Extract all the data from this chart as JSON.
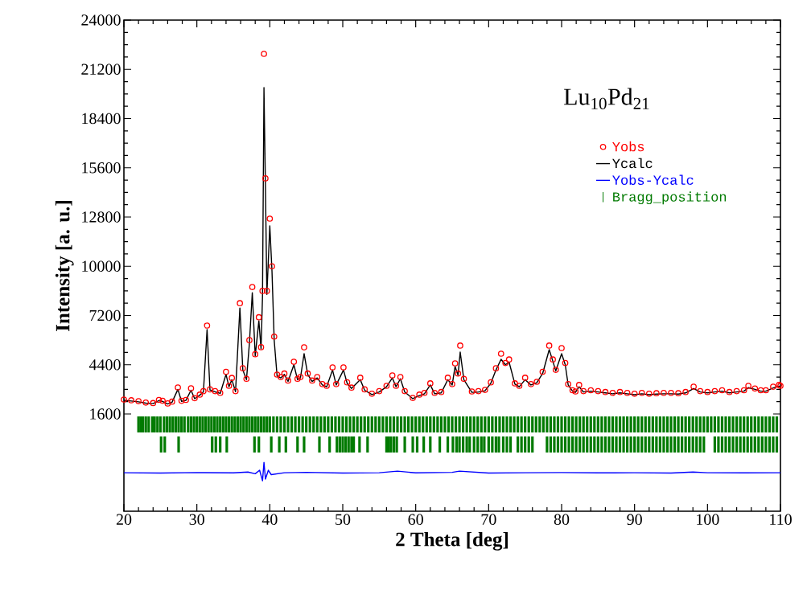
{
  "chart_data": {
    "type": "line",
    "xlabel": "2 Theta [deg]",
    "ylabel": "Intensity [a. u.]",
    "annotations": [
      "Lu$_{10}$Pd$_{21}$"
    ],
    "xlim": [
      20,
      110
    ],
    "ylim": [
      -3930,
      24000
    ],
    "xticks": [
      20,
      30,
      40,
      50,
      60,
      70,
      80,
      90,
      100,
      110
    ],
    "yticks": [
      1600,
      4400,
      7200,
      10000,
      12800,
      15600,
      18400,
      21200,
      24000
    ],
    "legend": "top right",
    "series": [
      {
        "name": "Yobs",
        "type": "scatter",
        "marker": "circle",
        "color": "#ff0000",
        "x": [
          20,
          21,
          22,
          23,
          24,
          24.8,
          25.3,
          26,
          26.6,
          27.4,
          27.9,
          28.5,
          29.2,
          29.7,
          30.4,
          30.9,
          31.4,
          31.8,
          32.5,
          33.2,
          34.0,
          34.4,
          34.8,
          35.3,
          35.9,
          36.3,
          36.8,
          37.2,
          37.6,
          38.0,
          38.5,
          38.8,
          39.0,
          39.2,
          39.4,
          39.6,
          40.0,
          40.3,
          40.6,
          41.0,
          41.5,
          42.0,
          42.5,
          43.3,
          43.8,
          44.2,
          44.7,
          45.2,
          45.8,
          46.5,
          47.2,
          47.8,
          48.6,
          49.1,
          50.1,
          50.6,
          51.2,
          52.4,
          53.0,
          54.0,
          55.0,
          56.0,
          56.8,
          57.3,
          57.9,
          58.5,
          59.6,
          60.5,
          61.2,
          62.0,
          62.6,
          63.5,
          64.4,
          65.0,
          65.4,
          65.8,
          66.1,
          66.6,
          67.7,
          68.6,
          69.5,
          70.3,
          71.0,
          71.7,
          72.3,
          72.8,
          73.6,
          74.2,
          75.0,
          75.8,
          76.6,
          77.4,
          78.3,
          78.8,
          79.2,
          80.0,
          80.5,
          80.9,
          81.5,
          81.9,
          82.4,
          83.0,
          84.0,
          85.0,
          86.0,
          87.0,
          88.0,
          89.0,
          90.0,
          91.0,
          92.0,
          93.0,
          94.0,
          95.0,
          96.0,
          97.0,
          98.1,
          99.0,
          100.0,
          101.0,
          102.0,
          103.0,
          104.0,
          105.0,
          105.6,
          106.5,
          107.3,
          108.0,
          109.0,
          109.8,
          110
        ],
        "values": [
          2420,
          2380,
          2330,
          2250,
          2220,
          2400,
          2350,
          2200,
          2300,
          3110,
          2350,
          2400,
          3060,
          2500,
          2700,
          2900,
          6630,
          3000,
          2900,
          2800,
          4000,
          3200,
          3650,
          2900,
          7900,
          4200,
          3600,
          5800,
          8820,
          5000,
          7100,
          5400,
          8600,
          22080,
          15000,
          8600,
          12710,
          10000,
          6000,
          3840,
          3700,
          3900,
          3500,
          4570,
          3600,
          3700,
          5390,
          3900,
          3500,
          3700,
          3300,
          3200,
          4250,
          3300,
          4250,
          3400,
          3100,
          3660,
          3000,
          2750,
          2900,
          3200,
          3790,
          3200,
          3700,
          2900,
          2510,
          2700,
          2800,
          3340,
          2800,
          2850,
          3660,
          3300,
          4480,
          3900,
          5490,
          3600,
          2880,
          2900,
          2970,
          3400,
          4200,
          5030,
          4500,
          4700,
          3340,
          3200,
          3660,
          3300,
          3430,
          4000,
          5490,
          4700,
          4110,
          5350,
          4500,
          3300,
          2950,
          2880,
          3250,
          2900,
          2950,
          2900,
          2850,
          2800,
          2850,
          2800,
          2750,
          2800,
          2750,
          2780,
          2800,
          2800,
          2780,
          2850,
          3150,
          2900,
          2850,
          2900,
          2950,
          2850,
          2900,
          2950,
          3200,
          3050,
          2950,
          2950,
          3150,
          3250,
          3200
        ]
      },
      {
        "name": "Ycalc",
        "color": "#000000",
        "x": [
          20,
          21,
          22,
          23,
          24,
          24.8,
          25.3,
          26,
          26.6,
          27.4,
          27.9,
          28.5,
          29.2,
          29.7,
          30.4,
          30.9,
          31.4,
          31.8,
          32.5,
          33.2,
          34.0,
          34.4,
          34.8,
          35.3,
          35.9,
          36.3,
          36.8,
          37.2,
          37.6,
          38.0,
          38.5,
          38.8,
          39.0,
          39.2,
          39.4,
          39.6,
          40.0,
          40.3,
          40.6,
          41.0,
          41.5,
          42.0,
          42.5,
          43.3,
          43.8,
          44.2,
          44.7,
          45.2,
          45.8,
          46.5,
          47.2,
          47.8,
          48.6,
          49.1,
          50.1,
          50.6,
          51.2,
          52.4,
          53.0,
          54.0,
          55.0,
          56.0,
          56.8,
          57.3,
          57.9,
          58.5,
          59.6,
          60.5,
          61.2,
          62.0,
          62.6,
          63.5,
          64.4,
          65.0,
          65.4,
          65.8,
          66.1,
          66.6,
          67.7,
          68.6,
          69.5,
          70.3,
          71.0,
          71.7,
          72.3,
          72.8,
          73.6,
          74.2,
          75.0,
          75.8,
          76.6,
          77.4,
          78.3,
          78.8,
          79.2,
          80.0,
          80.5,
          80.9,
          81.5,
          81.9,
          82.4,
          83.0,
          84.0,
          85.0,
          86.0,
          87.0,
          88.0,
          89.0,
          90.0,
          91.0,
          92.0,
          93.0,
          94.0,
          95.0,
          96.0,
          97.0,
          98.1,
          99.0,
          100.0,
          101.0,
          102.0,
          103.0,
          104.0,
          105.0,
          105.6,
          106.5,
          107.3,
          108.0,
          109.0,
          109.8,
          110
        ],
        "values": [
          2380,
          2340,
          2290,
          2220,
          2190,
          2360,
          2310,
          2170,
          2270,
          3000,
          2320,
          2370,
          2950,
          2470,
          2670,
          2860,
          6400,
          2960,
          2860,
          2770,
          3850,
          3150,
          3550,
          2870,
          7630,
          4100,
          3550,
          5600,
          8500,
          4900,
          6900,
          5300,
          8300,
          20160,
          14500,
          8400,
          12300,
          9700,
          5800,
          3750,
          3650,
          3850,
          3450,
          4400,
          3550,
          3650,
          5030,
          3850,
          3450,
          3650,
          3250,
          3150,
          4100,
          3250,
          4100,
          3350,
          3050,
          3550,
          2950,
          2700,
          2850,
          3150,
          3650,
          3150,
          3600,
          2850,
          2470,
          2650,
          2750,
          3250,
          2750,
          2800,
          3550,
          3250,
          4300,
          3800,
          5120,
          3550,
          2830,
          2850,
          2920,
          3350,
          4100,
          4710,
          4400,
          4550,
          3300,
          3150,
          3550,
          3250,
          3380,
          3900,
          5260,
          4600,
          4050,
          5030,
          4400,
          3250,
          2900,
          2830,
          3150,
          2850,
          2900,
          2850,
          2800,
          2750,
          2800,
          2750,
          2700,
          2750,
          2700,
          2730,
          2750,
          2750,
          2730,
          2800,
          3050,
          2850,
          2800,
          2850,
          2900,
          2800,
          2850,
          2900,
          3100,
          3000,
          2900,
          2900,
          3080,
          3180,
          3150
        ]
      },
      {
        "name": "Yobs-Ycalc",
        "color": "#0000ff",
        "x": [
          20,
          25,
          30,
          35,
          37,
          38,
          38.6,
          39.0,
          39.2,
          39.4,
          39.8,
          40.2,
          42,
          45,
          50,
          55,
          57.5,
          60,
          65,
          66,
          70,
          75,
          80,
          85,
          90,
          95,
          98,
          100,
          105,
          110
        ],
        "values": [
          -1740,
          -1760,
          -1730,
          -1750,
          -1700,
          -1800,
          -1600,
          -2200,
          -1150,
          -2100,
          -1600,
          -1850,
          -1740,
          -1720,
          -1760,
          -1740,
          -1650,
          -1750,
          -1720,
          -1650,
          -1760,
          -1740,
          -1730,
          -1750,
          -1740,
          -1760,
          -1700,
          -1740,
          -1750,
          -1740
        ]
      },
      {
        "name": "Bragg_position",
        "type": "bar",
        "color": "#007a00",
        "x": [
          22.0,
          22.3,
          22.6,
          23.0,
          23.4,
          23.9,
          24.2,
          24.6,
          25.0,
          25.5,
          25.9,
          26.3,
          26.7,
          27.1,
          27.5,
          27.9,
          28.3,
          28.8,
          29.2,
          29.6,
          30.0,
          30.4,
          30.8,
          31.2,
          31.6,
          32.0,
          32.4,
          32.8,
          33.2,
          33.6,
          34.0,
          34.4,
          34.8,
          35.2,
          35.6,
          36.0,
          36.4,
          36.8,
          37.2,
          37.6,
          38.0,
          38.4,
          38.8,
          39.2,
          39.6,
          40.0,
          40.5,
          41.0,
          41.5,
          42.0,
          42.5,
          43.0,
          43.5,
          44.0,
          44.5,
          45.0,
          45.5,
          46.0,
          46.5,
          47.0,
          47.5,
          48.0,
          48.5,
          49.0,
          49.5,
          50.0,
          50.5,
          51.0,
          51.5,
          52.0,
          52.5,
          53.0,
          53.5,
          54.0,
          54.5,
          55.0,
          55.5,
          56.0,
          56.5,
          57.0,
          57.5,
          58.0,
          58.5,
          59.0,
          59.5,
          60.0,
          60.5,
          61.0,
          61.5,
          62.0,
          62.5,
          63.0,
          63.5,
          64.0,
          64.5,
          65.0,
          65.5,
          66.0,
          66.5,
          67.0,
          67.5,
          68.0,
          68.5,
          69.0,
          69.5,
          70.0,
          70.5,
          71.0,
          71.5,
          72.0,
          72.5,
          73.0,
          73.5,
          74.0,
          74.5,
          75.0,
          75.5,
          76.0,
          76.5,
          77.0,
          77.5,
          78.0,
          78.5,
          79.0,
          79.5,
          80.0,
          80.5,
          81.0,
          81.5,
          82.0,
          82.5,
          83.0,
          83.5,
          84.0,
          84.5,
          85.0,
          85.5,
          86.0,
          86.5,
          87.0,
          87.5,
          88.0,
          88.5,
          89.0,
          89.5,
          90.0,
          90.5,
          91.0,
          91.5,
          92.0,
          92.5,
          93.0,
          93.5,
          94.0,
          94.5,
          95.0,
          95.5,
          96.0,
          96.5,
          97.0,
          97.5,
          98.0,
          98.5,
          99.0,
          99.5,
          100.0,
          100.5,
          101.0,
          101.5,
          102.0,
          102.5,
          103.0,
          103.5,
          104.0,
          104.5,
          105.0,
          105.5,
          106.0,
          106.5,
          107.0,
          107.5,
          108.0,
          108.5,
          109.0,
          109.5
        ],
        "values": [
          910,
          910,
          910,
          910,
          910,
          910,
          910,
          910,
          910,
          910,
          910,
          910,
          910,
          910,
          910,
          910,
          910,
          910,
          910,
          910,
          910,
          910,
          910,
          910,
          910,
          910,
          910,
          910,
          910,
          910,
          910,
          910,
          910,
          910,
          910,
          910,
          910,
          910,
          910,
          910,
          910,
          910,
          910,
          910,
          910,
          910,
          910,
          910,
          910,
          910,
          910,
          910,
          910,
          910,
          910,
          910,
          910,
          910,
          910,
          910,
          910,
          910,
          910,
          910,
          910,
          910,
          910,
          910,
          910,
          910,
          910,
          910,
          910,
          910,
          910,
          910,
          910,
          910,
          910,
          910,
          910,
          910,
          910,
          910,
          910,
          910,
          910,
          910,
          910,
          910,
          910,
          910,
          910,
          910,
          910,
          910,
          910,
          910,
          910,
          910,
          910,
          910,
          910,
          910,
          910,
          910,
          910,
          910,
          910,
          910,
          910,
          910,
          910,
          910,
          910,
          910,
          910,
          910,
          910,
          910,
          910,
          910,
          910,
          910,
          910,
          910,
          910,
          910,
          910,
          910,
          910,
          910,
          910,
          910,
          910,
          910,
          910,
          910,
          910,
          910,
          910,
          910,
          910,
          910,
          910,
          910,
          910,
          910,
          910,
          910,
          910,
          910,
          910,
          910,
          910,
          910,
          910,
          910,
          910,
          910,
          910,
          910,
          910,
          910,
          910,
          910,
          910,
          910,
          910,
          910,
          910,
          910,
          910,
          910,
          910,
          910,
          910,
          910,
          910,
          910,
          910,
          910,
          910,
          910,
          910
        ],
        "base": [
          550,
          550,
          550,
          550,
          550,
          550,
          550,
          550,
          550,
          550,
          550,
          550,
          550,
          550,
          550,
          550,
          550,
          550,
          550,
          550,
          550,
          550,
          550,
          550,
          550,
          550,
          550,
          550,
          550,
          550,
          550,
          550,
          550,
          550,
          550,
          550,
          550,
          550,
          550,
          550,
          550,
          550,
          550,
          550,
          550,
          550,
          550,
          550,
          550,
          550,
          550,
          550,
          550,
          550,
          550,
          550,
          550,
          550,
          550,
          550,
          550,
          550,
          550,
          550,
          550,
          550,
          550,
          550,
          550,
          550,
          550,
          550,
          550,
          550,
          550,
          550,
          550,
          550,
          550,
          550,
          550,
          550,
          550,
          550,
          550,
          550,
          550,
          550,
          550,
          550,
          550,
          550,
          550,
          550,
          550,
          550,
          550,
          550,
          550,
          550,
          550,
          550,
          550,
          550,
          550,
          550,
          550,
          550,
          550,
          550,
          550,
          550,
          550,
          550,
          550,
          550,
          550,
          550,
          550,
          550,
          550,
          550,
          550,
          550,
          550,
          550,
          550,
          550,
          550,
          550,
          550,
          550,
          550,
          550,
          550,
          550,
          550,
          550,
          550,
          550,
          550,
          550,
          550,
          550,
          550,
          550,
          550,
          550,
          550,
          550,
          550,
          550,
          550,
          550,
          550,
          550,
          550,
          550,
          550,
          550,
          550,
          550,
          550,
          550,
          550,
          550,
          550,
          550,
          550,
          550,
          550,
          550,
          550,
          550,
          550,
          550,
          550,
          550,
          550,
          550,
          550,
          550,
          550,
          550,
          550
        ]
      },
      {
        "type": "bar",
        "color": "#007a00",
        "x": [
          25.1,
          25.6,
          27.5,
          32.1,
          32.6,
          33.2,
          34.1,
          37.9,
          38.5,
          40.2,
          41.3,
          42.2,
          43.8,
          44.7,
          46.8,
          48.2,
          49.2,
          49.6,
          50.0,
          50.4,
          50.8,
          51.2,
          51.5,
          52.3,
          53.4,
          56.0,
          56.3,
          56.6,
          57.0,
          57.4,
          58.5,
          59.6,
          60.2,
          61.1,
          62.0,
          63.3,
          64.4,
          65.1,
          65.6,
          66.0,
          66.5,
          67.0,
          67.4,
          68.0,
          68.5,
          69.0,
          69.4,
          70.0,
          70.5,
          71.0,
          71.4,
          72.0,
          72.5,
          73.0,
          74.0,
          74.5,
          75.0,
          75.5,
          76.0,
          78.0,
          78.5,
          79.0,
          79.5,
          80.0,
          80.5,
          81.0,
          81.5,
          82.0,
          82.5,
          83.0,
          83.5,
          84.0,
          84.5,
          85.0,
          85.5,
          86.0,
          86.5,
          87.0,
          87.5,
          88.0,
          88.5,
          89.0,
          89.5,
          90.0,
          90.5,
          91.0,
          91.5,
          92.0,
          92.5,
          93.0,
          93.5,
          94.0,
          94.5,
          95.0,
          95.5,
          96.0,
          96.5,
          97.0,
          97.5,
          98.0,
          98.5,
          99.0,
          99.5,
          101.0,
          101.5,
          102.0,
          102.5,
          103.0,
          103.5,
          104.0,
          104.5,
          105.0,
          105.5,
          106.0,
          106.5,
          107.0,
          107.5,
          108.0,
          108.5,
          109.0,
          109.5
        ],
        "values": [
          910,
          910,
          910,
          910,
          910,
          910,
          910,
          910,
          910,
          910,
          910,
          910,
          910,
          910,
          910,
          910,
          910,
          910,
          910,
          910,
          910,
          910,
          910,
          910,
          910,
          910,
          910,
          910,
          910,
          910,
          910,
          910,
          910,
          910,
          910,
          910,
          910,
          910,
          910,
          910,
          910,
          910,
          910,
          910,
          910,
          910,
          910,
          910,
          910,
          910,
          910,
          910,
          910,
          910,
          910,
          910,
          910,
          910,
          910,
          910,
          910,
          910,
          910,
          910,
          910,
          910,
          910,
          910,
          910,
          910,
          910,
          910,
          910,
          910,
          910,
          910,
          910,
          910,
          910,
          910,
          910,
          910,
          910,
          910,
          910,
          910,
          910,
          910,
          910,
          910,
          910,
          910,
          910,
          910,
          910,
          910,
          910,
          910,
          910,
          910,
          910,
          910,
          910,
          910,
          910,
          910,
          910,
          910,
          910,
          910,
          910,
          910,
          910,
          910,
          910,
          910,
          910,
          910,
          910,
          910,
          910
        ],
        "base": [
          -590,
          -590,
          -590,
          -590,
          -590,
          -590,
          -590,
          -590,
          -590,
          -590,
          -590,
          -590,
          -590,
          -590,
          -590,
          -590,
          -590,
          -590,
          -590,
          -590,
          -590,
          -590,
          -590,
          -590,
          -590,
          -590,
          -590,
          -590,
          -590,
          -590,
          -590,
          -590,
          -590,
          -590,
          -590,
          -590,
          -590,
          -590,
          -590,
          -590,
          -590,
          -590,
          -590,
          -590,
          -590,
          -590,
          -590,
          -590,
          -590,
          -590,
          -590,
          -590,
          -590,
          -590,
          -590,
          -590,
          -590,
          -590,
          -590,
          -590,
          -590,
          -590,
          -590,
          -590,
          -590,
          -590,
          -590,
          -590,
          -590,
          -590,
          -590,
          -590,
          -590,
          -590,
          -590,
          -590,
          -590,
          -590,
          -590,
          -590,
          -590,
          -590,
          -590,
          -590,
          -590,
          -590,
          -590,
          -590,
          -590,
          -590,
          -590,
          -590,
          -590,
          -590,
          -590,
          -590,
          -590,
          -590,
          -590,
          -590,
          -590,
          -590,
          -590,
          -590,
          -590,
          -590,
          -590,
          -590,
          -590,
          -590,
          -590,
          -590,
          -590,
          -590,
          -590,
          -590,
          -590,
          -590,
          -590,
          -590,
          -590
        ]
      }
    ]
  }
}
